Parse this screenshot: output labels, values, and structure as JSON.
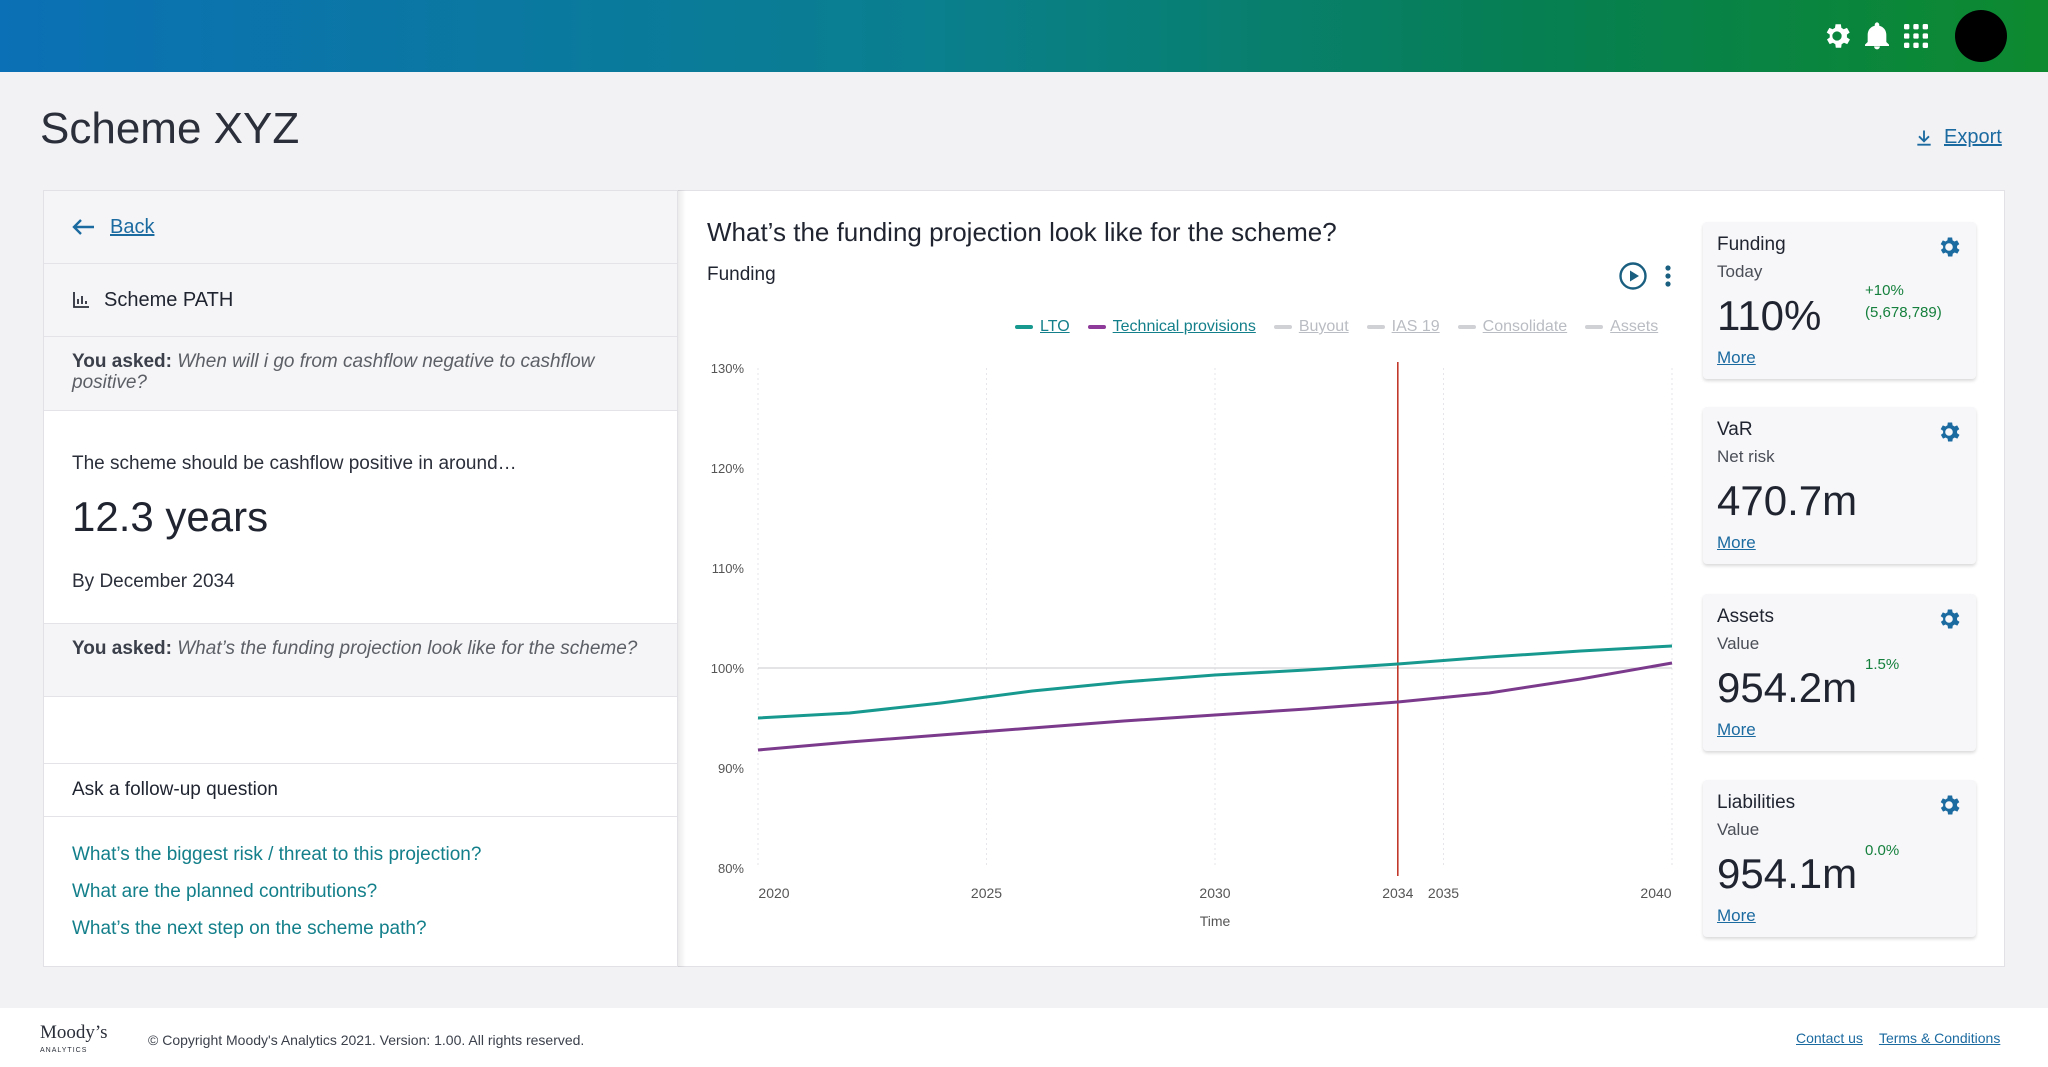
{
  "header": {
    "icons": [
      "gear-icon",
      "bell-icon",
      "apps-grid-icon",
      "avatar"
    ]
  },
  "page": {
    "title": "Scheme XYZ",
    "export_label": "Export"
  },
  "left": {
    "back_label": "Back",
    "path_label": "Scheme PATH",
    "asked_label": "You asked:",
    "question1": "When will i go from cashflow negative to cashflow positive?",
    "answer_lead": "The scheme should be cashflow positive in around…",
    "answer_value": "12.3 years",
    "answer_by": "By December 2034",
    "question2": "What’s the funding projection look like for the scheme?",
    "follow_title": "Ask a follow-up question",
    "followups": [
      "What’s the biggest risk / threat to this projection?",
      "What are the planned contributions?",
      "What’s the next step on the scheme path?"
    ]
  },
  "main": {
    "question": "What’s the funding projection look like for the scheme?",
    "chart_title": "Funding",
    "legend": [
      {
        "label": "LTO",
        "active": true,
        "color": "#17998f"
      },
      {
        "label": "Technical provisions",
        "active": true,
        "color": "#8e3a9a"
      },
      {
        "label": "Buyout",
        "active": false,
        "color": "#cfd1d5"
      },
      {
        "label": "IAS 19",
        "active": false,
        "color": "#cfd1d5"
      },
      {
        "label": "Consolidate",
        "active": false,
        "color": "#cfd1d5"
      },
      {
        "label": "Assets",
        "active": false,
        "color": "#cfd1d5"
      }
    ]
  },
  "chart_data": {
    "type": "line",
    "title": "Funding",
    "xlabel": "Time",
    "ylabel": "",
    "xlim": [
      2020,
      2040
    ],
    "ylim": [
      80,
      130
    ],
    "y_ticks": [
      "80%",
      "90%",
      "100%",
      "110%",
      "120%",
      "130%"
    ],
    "y_tick_values": [
      80,
      90,
      100,
      110,
      120,
      130
    ],
    "x_ticks": [
      2020,
      2025,
      2030,
      2034,
      2035,
      2040
    ],
    "marker_year": 2034,
    "marker_color": "#c0392b",
    "series": [
      {
        "name": "LTO",
        "color": "#17998f",
        "x": [
          2020,
          2022,
          2024,
          2026,
          2028,
          2030,
          2032,
          2034,
          2036,
          2038,
          2040
        ],
        "y": [
          95.0,
          95.5,
          96.5,
          97.7,
          98.6,
          99.3,
          99.8,
          100.4,
          101.1,
          101.7,
          102.2
        ]
      },
      {
        "name": "Technical provisions",
        "color": "#7b3a8c",
        "x": [
          2020,
          2022,
          2024,
          2026,
          2028,
          2030,
          2032,
          2034,
          2036,
          2038,
          2040
        ],
        "y": [
          91.8,
          92.6,
          93.3,
          94.0,
          94.7,
          95.3,
          95.9,
          96.6,
          97.5,
          98.9,
          100.5
        ]
      }
    ]
  },
  "cards": [
    {
      "title": "Funding",
      "sub": "Today",
      "value": "110%",
      "delta": "+10%",
      "delta2": "(5,678,789)",
      "more": "More"
    },
    {
      "title": "VaR",
      "sub": "Net risk",
      "value": "470.7m",
      "delta": "",
      "delta2": "",
      "more": "More"
    },
    {
      "title": "Assets",
      "sub": "Value",
      "value": "954.2m",
      "delta": "1.5%",
      "delta2": "",
      "more": "More"
    },
    {
      "title": "Liabilities",
      "sub": "Value",
      "value": "954.1m",
      "delta": "0.0%",
      "delta2": "",
      "more": "More"
    }
  ],
  "footer": {
    "logo": "Moody’s",
    "logo_sub": "ANALYTICS",
    "copyright": "© Copyright Moody's Analytics 2021. Version: 1.00.  All rights reserved.",
    "contact": "Contact us",
    "terms": "Terms & Conditions"
  }
}
